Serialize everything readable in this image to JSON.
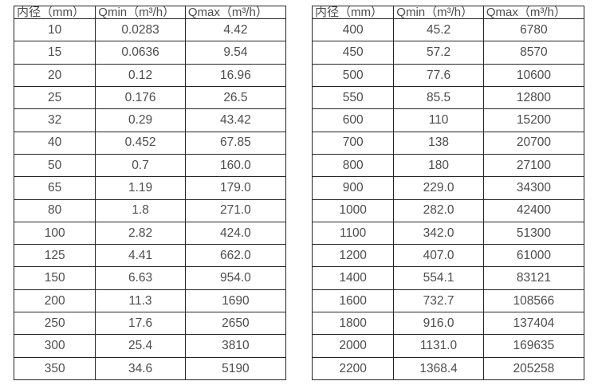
{
  "page": {
    "background": "#ffffff",
    "text_color": "#4d4d4d",
    "border_color": "#262626"
  },
  "tables": [
    {
      "name": "small-diameter-flow-table",
      "headers": [
        "内径（mm）",
        "Qmin（m³/h）",
        "Qmax（m³/h）"
      ],
      "rows": [
        [
          "10",
          "0.0283",
          "4.42"
        ],
        [
          "15",
          "0.0636",
          "9.54"
        ],
        [
          "20",
          "0.12",
          "16.96"
        ],
        [
          "25",
          "0.176",
          "26.5"
        ],
        [
          "32",
          "0.29",
          "43.42"
        ],
        [
          "40",
          "0.452",
          "67.85"
        ],
        [
          "50",
          "0.7",
          "160.0"
        ],
        [
          "65",
          "1.19",
          "179.0"
        ],
        [
          "80",
          "1.8",
          "271.0"
        ],
        [
          "100",
          "2.82",
          "424.0"
        ],
        [
          "125",
          "4.41",
          "662.0"
        ],
        [
          "150",
          "6.63",
          "954.0"
        ],
        [
          "200",
          "11.3",
          "1690"
        ],
        [
          "250",
          "17.6",
          "2650"
        ],
        [
          "300",
          "25.4",
          "3810"
        ],
        [
          "350",
          "34.6",
          "5190"
        ]
      ]
    },
    {
      "name": "large-diameter-flow-table",
      "headers": [
        "内径（mm）",
        "Qmin（m³/h）",
        "Qmax（m³/h）"
      ],
      "rows": [
        [
          "400",
          "45.2",
          "6780"
        ],
        [
          "450",
          "57.2",
          "8570"
        ],
        [
          "500",
          "77.6",
          "10600"
        ],
        [
          "550",
          "85.5",
          "12800"
        ],
        [
          "600",
          "110",
          "15200"
        ],
        [
          "700",
          "138",
          "20700"
        ],
        [
          "800",
          "180",
          "27100"
        ],
        [
          "900",
          "229.0",
          "34300"
        ],
        [
          "1000",
          "282.0",
          "42400"
        ],
        [
          "1100",
          "342.0",
          "51300"
        ],
        [
          "1200",
          "407.0",
          "61000"
        ],
        [
          "1400",
          "554.1",
          "83121"
        ],
        [
          "1600",
          "732.7",
          "108566"
        ],
        [
          "1800",
          "916.0",
          "137404"
        ],
        [
          "2000",
          "1131.0",
          "169635"
        ],
        [
          "2200",
          "1368.4",
          "205258"
        ]
      ]
    }
  ]
}
